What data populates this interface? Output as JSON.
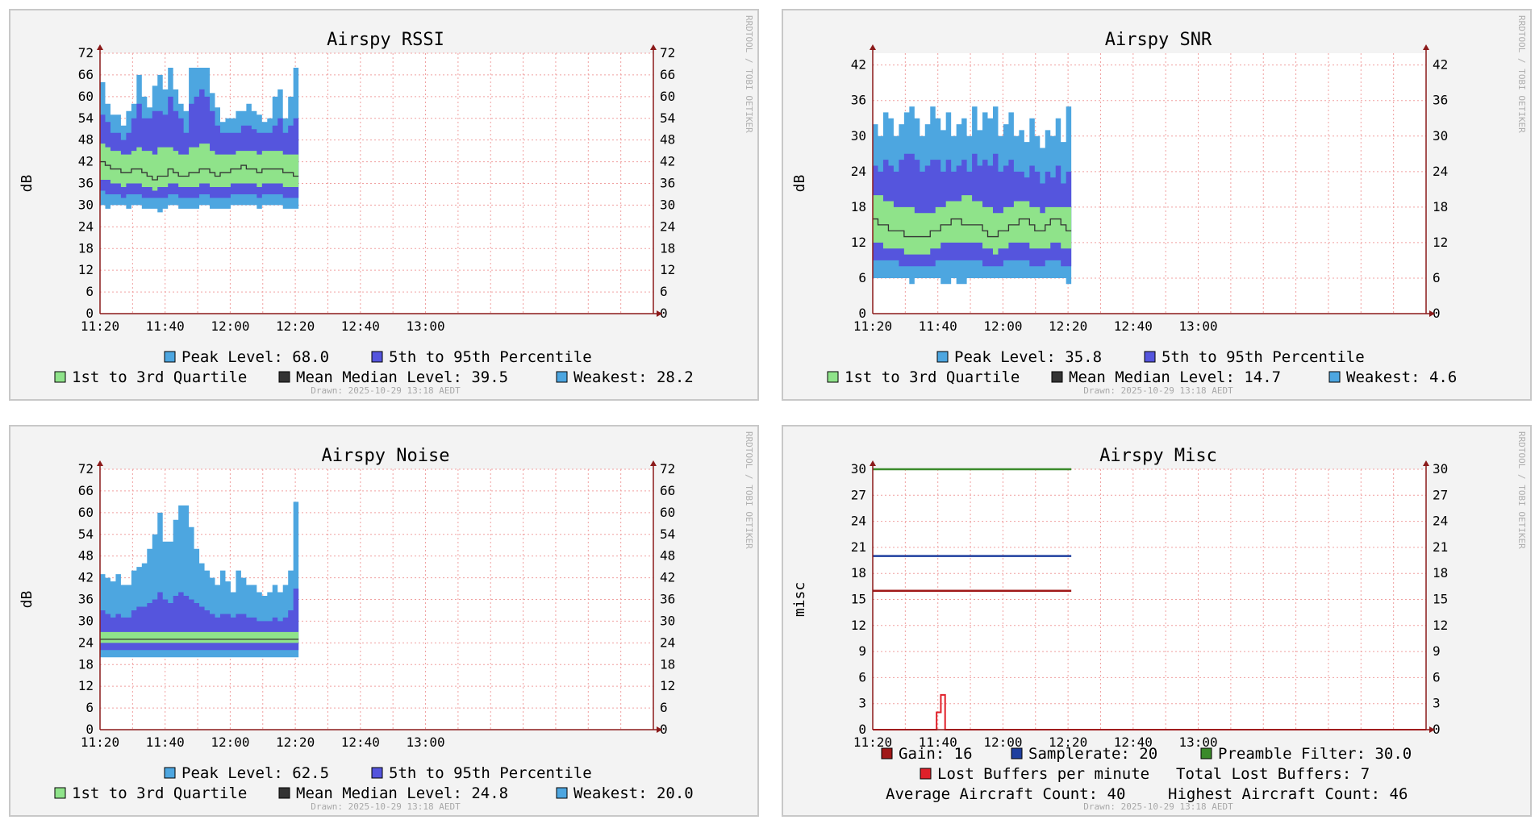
{
  "colors": {
    "peak": "#4da6e0",
    "p595": "#5555dd",
    "quart": "#8fe38a",
    "median": "#333333",
    "weak": "#4da6e0",
    "grid": "#f0a0a0",
    "axis": "#8b1a1a",
    "gain": "#a01818",
    "samplerate": "#1f3f9f",
    "preamble": "#3a8a2a",
    "lost": "#e0202a"
  },
  "x_ticks": [
    "11:20",
    "11:40",
    "12:00",
    "12:20",
    "12:40",
    "13:00"
  ],
  "side_text": "RRDTOOL / TOBI OETIKER",
  "drawn_text": "Drawn: 2025-10-29 13:18 AEDT",
  "chart_data": [
    {
      "type": "area",
      "title": "Airspy RSSI",
      "ylabel": "dB",
      "ylim": [
        0,
        72
      ],
      "y_ticks": [
        0,
        6,
        12,
        18,
        24,
        30,
        36,
        42,
        48,
        54,
        60,
        66,
        72
      ],
      "peak": [
        64,
        58,
        55,
        55,
        52,
        56,
        58,
        66,
        60,
        57,
        63,
        66,
        62,
        68,
        62,
        58,
        56,
        68,
        68,
        68,
        68,
        61,
        57,
        53,
        54,
        54,
        56,
        56,
        58,
        56,
        55,
        53,
        54,
        60,
        62,
        54,
        60,
        68
      ],
      "p95": [
        55,
        53,
        50,
        50,
        48,
        50,
        54,
        58,
        54,
        54,
        56,
        56,
        55,
        60,
        56,
        54,
        50,
        58,
        60,
        62,
        60,
        56,
        52,
        50,
        50,
        50,
        50,
        52,
        52,
        51,
        50,
        50,
        50,
        52,
        54,
        50,
        52,
        54
      ],
      "q3": [
        47,
        46,
        45,
        45,
        44,
        44,
        45,
        46,
        45,
        45,
        44,
        46,
        46,
        46,
        45,
        44,
        44,
        46,
        46,
        47,
        47,
        45,
        44,
        44,
        44,
        44,
        45,
        45,
        45,
        45,
        44,
        45,
        45,
        45,
        45,
        44,
        44,
        44
      ],
      "median": [
        42,
        41,
        40,
        40,
        39,
        39,
        40,
        40,
        39,
        38,
        37,
        38,
        38,
        40,
        39,
        38,
        38,
        39,
        39,
        40,
        40,
        39,
        38,
        39,
        39,
        40,
        40,
        41,
        40,
        40,
        39,
        40,
        40,
        40,
        40,
        39,
        39,
        38
      ],
      "q1": [
        37,
        37,
        36,
        36,
        35,
        36,
        36,
        36,
        35,
        35,
        34,
        35,
        35,
        36,
        36,
        35,
        35,
        35,
        35,
        36,
        36,
        35,
        35,
        35,
        35,
        36,
        36,
        36,
        36,
        36,
        35,
        36,
        36,
        36,
        36,
        35,
        35,
        35
      ],
      "p5": [
        34,
        33,
        33,
        33,
        32,
        33,
        33,
        33,
        32,
        32,
        32,
        32,
        32,
        33,
        33,
        32,
        32,
        32,
        32,
        33,
        33,
        32,
        32,
        32,
        32,
        33,
        33,
        33,
        33,
        33,
        32,
        33,
        33,
        33,
        33,
        32,
        32,
        32
      ],
      "weak": [
        30,
        29,
        30,
        30,
        30,
        29,
        30,
        30,
        29,
        29,
        29,
        28,
        29,
        30,
        30,
        29,
        29,
        29,
        29,
        30,
        30,
        29,
        29,
        29,
        29,
        30,
        30,
        30,
        30,
        30,
        29,
        30,
        30,
        30,
        30,
        29,
        29,
        29
      ],
      "legend": {
        "peak": "Peak Level:  68.0",
        "p595": "5th to 95th Percentile",
        "quart": "1st to 3rd Quartile",
        "median": "Mean Median Level:  39.5",
        "weak": "Weakest:  28.2"
      }
    },
    {
      "type": "area",
      "title": "Airspy SNR",
      "ylabel": "dB",
      "ylim": [
        0,
        44
      ],
      "y_ticks": [
        0,
        6,
        12,
        18,
        24,
        30,
        36,
        42
      ],
      "peak": [
        32,
        30,
        34,
        33,
        30,
        32,
        34,
        35,
        33,
        30,
        32,
        35,
        33,
        31,
        34,
        30,
        32,
        33,
        30,
        35,
        31,
        34,
        33,
        35,
        30,
        32,
        34,
        30,
        31,
        29,
        33,
        30,
        28,
        31,
        30,
        33,
        29,
        35
      ],
      "p95": [
        25,
        24,
        26,
        25,
        24,
        26,
        27,
        27,
        26,
        24,
        25,
        26,
        26,
        24,
        26,
        24,
        25,
        26,
        24,
        27,
        25,
        26,
        25,
        27,
        24,
        25,
        26,
        24,
        24,
        23,
        25,
        24,
        22,
        24,
        23,
        25,
        22,
        24
      ],
      "q3": [
        20,
        20,
        19,
        19,
        18,
        18,
        18,
        18,
        17,
        17,
        17,
        17,
        18,
        18,
        19,
        19,
        19,
        20,
        20,
        19,
        19,
        18,
        18,
        17,
        17,
        18,
        18,
        19,
        19,
        19,
        18,
        18,
        17,
        18,
        18,
        18,
        18,
        18
      ],
      "median": [
        16,
        15,
        15,
        14,
        14,
        14,
        13,
        13,
        13,
        13,
        13,
        14,
        14,
        15,
        15,
        16,
        16,
        15,
        15,
        15,
        15,
        14,
        13,
        13,
        14,
        14,
        15,
        15,
        16,
        16,
        15,
        14,
        14,
        15,
        16,
        16,
        15,
        14
      ],
      "q1": [
        12,
        12,
        11,
        11,
        11,
        11,
        10,
        10,
        10,
        10,
        10,
        11,
        11,
        12,
        12,
        12,
        12,
        12,
        12,
        12,
        12,
        11,
        11,
        10,
        11,
        11,
        12,
        12,
        12,
        12,
        11,
        11,
        11,
        11,
        12,
        12,
        11,
        11
      ],
      "p5": [
        9,
        9,
        9,
        9,
        9,
        8,
        8,
        8,
        8,
        8,
        8,
        8,
        9,
        9,
        9,
        9,
        9,
        9,
        9,
        9,
        9,
        8,
        8,
        8,
        8,
        9,
        9,
        9,
        9,
        9,
        8,
        8,
        8,
        9,
        9,
        9,
        8,
        8
      ],
      "weak": [
        6,
        6,
        6,
        6,
        6,
        6,
        6,
        5,
        6,
        6,
        6,
        6,
        6,
        5,
        5,
        6,
        5,
        5,
        6,
        6,
        6,
        6,
        6,
        6,
        6,
        6,
        6,
        6,
        6,
        6,
        6,
        6,
        6,
        6,
        6,
        6,
        6,
        5
      ],
      "legend": {
        "peak": "Peak Level:  35.8",
        "p595": "5th to 95th Percentile",
        "quart": "1st to 3rd Quartile",
        "median": "Mean Median Level:  14.7",
        "weak": "Weakest:   4.6"
      }
    },
    {
      "type": "area",
      "title": "Airspy Noise",
      "ylabel": "dB",
      "ylim": [
        0,
        72
      ],
      "y_ticks": [
        0,
        6,
        12,
        18,
        24,
        30,
        36,
        42,
        48,
        54,
        60,
        66,
        72
      ],
      "peak": [
        43,
        42,
        41,
        43,
        40,
        40,
        44,
        45,
        46,
        50,
        54,
        60,
        52,
        52,
        58,
        62,
        62,
        56,
        50,
        46,
        44,
        42,
        40,
        44,
        41,
        38,
        44,
        42,
        40,
        40,
        38,
        37,
        38,
        40,
        38,
        40,
        44,
        63
      ],
      "p95": [
        33,
        32,
        31,
        32,
        31,
        31,
        33,
        34,
        34,
        35,
        36,
        38,
        36,
        35,
        37,
        38,
        37,
        36,
        35,
        34,
        33,
        32,
        31,
        32,
        32,
        31,
        32,
        32,
        31,
        31,
        30,
        30,
        30,
        31,
        30,
        31,
        33,
        39
      ],
      "q3": [
        27,
        27,
        27,
        27,
        27,
        27,
        27,
        27,
        27,
        27,
        27,
        27,
        27,
        27,
        27,
        27,
        27,
        27,
        27,
        27,
        27,
        27,
        27,
        27,
        27,
        27,
        27,
        27,
        27,
        27,
        27,
        27,
        27,
        27,
        27,
        27,
        27,
        27
      ],
      "median": [
        25,
        25,
        25,
        25,
        25,
        25,
        25,
        25,
        25,
        25,
        25,
        25,
        25,
        25,
        25,
        25,
        25,
        25,
        25,
        25,
        25,
        25,
        25,
        25,
        25,
        25,
        25,
        25,
        25,
        25,
        25,
        25,
        25,
        25,
        25,
        25,
        25,
        25
      ],
      "q1": [
        24,
        24,
        24,
        24,
        24,
        24,
        24,
        24,
        24,
        24,
        24,
        24,
        24,
        24,
        24,
        24,
        24,
        24,
        24,
        24,
        24,
        24,
        24,
        24,
        24,
        24,
        24,
        24,
        24,
        24,
        24,
        24,
        24,
        24,
        24,
        24,
        24,
        24
      ],
      "p5": [
        22,
        22,
        22,
        22,
        22,
        22,
        22,
        22,
        22,
        22,
        22,
        22,
        22,
        22,
        22,
        22,
        22,
        22,
        22,
        22,
        22,
        22,
        22,
        22,
        22,
        22,
        22,
        22,
        22,
        22,
        22,
        22,
        22,
        22,
        22,
        22,
        22,
        22
      ],
      "weak": [
        20,
        20,
        20,
        20,
        20,
        20,
        20,
        20,
        20,
        20,
        20,
        20,
        20,
        20,
        20,
        20,
        20,
        20,
        20,
        20,
        20,
        20,
        20,
        20,
        20,
        20,
        20,
        20,
        20,
        20,
        20,
        20,
        20,
        20,
        20,
        20,
        20,
        20
      ],
      "legend": {
        "peak": "Peak Level:  62.5",
        "p595": "5th to 95th Percentile",
        "quart": "1st to 3rd Quartile",
        "median": "Mean Median Level:  24.8",
        "weak": "Weakest:  20.0"
      }
    },
    {
      "type": "line",
      "title": "Airspy Misc",
      "ylabel": "misc",
      "ylim": [
        0,
        30
      ],
      "y_ticks": [
        0,
        3,
        6,
        9,
        12,
        15,
        18,
        21,
        24,
        27,
        30
      ],
      "series": [
        {
          "name": "Gain",
          "value": 16
        },
        {
          "name": "Samplerate",
          "value": 20
        },
        {
          "name": "Preamble Filter",
          "value": 30
        }
      ],
      "lost_buffers": [
        0,
        0,
        0,
        0,
        0,
        0,
        0,
        0,
        0,
        0,
        0,
        0,
        0,
        0,
        0,
        2,
        4,
        0,
        0,
        0,
        0,
        0,
        0,
        0,
        0,
        0,
        0,
        0,
        0,
        0,
        0,
        0,
        0,
        0,
        0,
        0,
        0,
        0,
        0,
        0,
        0,
        0,
        0,
        0,
        0,
        0,
        0,
        0,
        0,
        0,
        0,
        0,
        0,
        0,
        0,
        0,
        0,
        0,
        0,
        0,
        0,
        0,
        0,
        0,
        0,
        0,
        0,
        0,
        0,
        0,
        0,
        0,
        0,
        0,
        0,
        0,
        0,
        0,
        0,
        0,
        0,
        0,
        0,
        0,
        0,
        0,
        0,
        0,
        0,
        0,
        0,
        0,
        0,
        0,
        0,
        0,
        0,
        0,
        0,
        0,
        0,
        0,
        0,
        0,
        0,
        0,
        0,
        0,
        0,
        0,
        0,
        0,
        0,
        0,
        0,
        0,
        0,
        0,
        0,
        0,
        0,
        0,
        0,
        0,
        0,
        0,
        0,
        0,
        0,
        0
      ],
      "legend": {
        "gain": "Gain:  16",
        "samplerate": "Samplerate:  20",
        "preamble": "Preamble Filter:  30.0",
        "lost": "Lost Buffers per minute",
        "total_lost": "Total Lost Buffers: 7",
        "avg_aircraft": "Average Aircraft Count:  40",
        "high_aircraft": "Highest Aircraft Count:  46"
      }
    }
  ]
}
